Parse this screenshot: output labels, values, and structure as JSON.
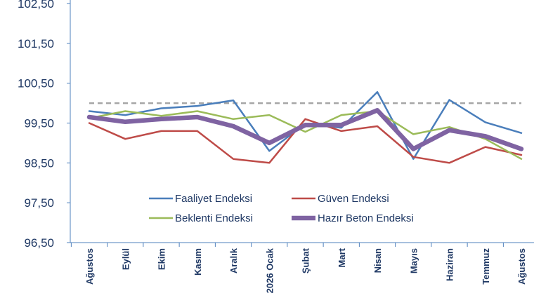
{
  "chart_data": {
    "type": "line",
    "categories": [
      "Ağustos",
      "Eylül",
      "Ekim",
      "Kasım",
      "Aralık",
      "2026 Ocak",
      "Şubat",
      "Mart",
      "Nisan",
      "Mayıs",
      "Haziran",
      "Temmuz",
      "Ağustos"
    ],
    "ylim": [
      96.5,
      102.5
    ],
    "yticks": [
      "96,50",
      "97,50",
      "98,50",
      "99,50",
      "100,50",
      "101,50",
      "102,50"
    ],
    "ytick_values": [
      96.5,
      97.5,
      98.5,
      99.5,
      100.5,
      101.5,
      102.5
    ],
    "reference_line": {
      "value": 100,
      "color": "#a6a6a6",
      "style": "dashed"
    },
    "grid": false,
    "legend_position": "inside-bottom",
    "series": [
      {
        "name": "Faaliyet Endeksi",
        "color": "#4a7ebb",
        "values": [
          99.8,
          99.7,
          99.87,
          99.93,
          100.07,
          98.8,
          99.48,
          99.38,
          100.28,
          98.6,
          100.08,
          99.52,
          99.25
        ]
      },
      {
        "name": "Güven Endeksi",
        "color": "#be4b48",
        "values": [
          99.5,
          99.1,
          99.3,
          99.3,
          98.6,
          98.5,
          99.6,
          99.3,
          99.42,
          98.65,
          98.5,
          98.9,
          98.7
        ]
      },
      {
        "name": "Beklenti Endeksi",
        "color": "#9bbb59",
        "values": [
          99.62,
          99.8,
          99.68,
          99.8,
          99.6,
          99.7,
          99.28,
          99.7,
          99.8,
          99.22,
          99.4,
          99.1,
          98.6
        ]
      },
      {
        "name": "Hazır Beton Endeksi",
        "color": "#7f63a2",
        "values": [
          99.65,
          99.53,
          99.6,
          99.65,
          99.42,
          99.0,
          99.45,
          99.45,
          99.82,
          98.85,
          99.32,
          99.17,
          98.85
        ]
      }
    ]
  }
}
